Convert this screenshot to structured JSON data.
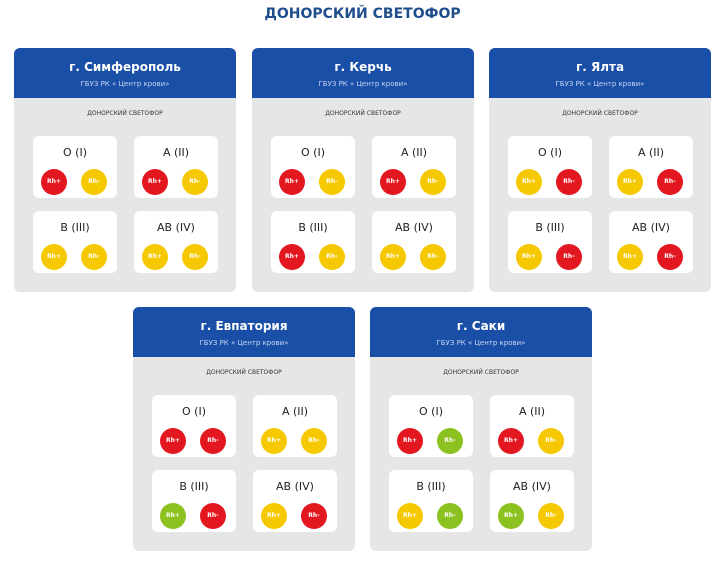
{
  "title": "ДОНОРСКИЙ СВЕТОФОР",
  "cards": [
    {
      "city": "г. Симферополь",
      "org": "ГБУЗ РК « Центр крови»",
      "label": "ДОНОРСКИЙ СВЕТОФОР",
      "groups": [
        {
          "name": "O (I)",
          "rh": [
            {
              "label": "Rh+",
              "color": "#e3171f"
            },
            {
              "label": "Rh-",
              "color": "#f5c800"
            }
          ]
        },
        {
          "name": "A (II)",
          "rh": [
            {
              "label": "Rh+",
              "color": "#e3171f"
            },
            {
              "label": "Rh-",
              "color": "#f5c800"
            }
          ]
        },
        {
          "name": "B (III)",
          "rh": [
            {
              "label": "Rh+",
              "color": "#f5c800"
            },
            {
              "label": "Rh-",
              "color": "#f5c800"
            }
          ]
        },
        {
          "name": "AB (IV)",
          "rh": [
            {
              "label": "Rh+",
              "color": "#f5c800"
            },
            {
              "label": "Rh-",
              "color": "#f5c800"
            }
          ]
        }
      ]
    },
    {
      "city": "г. Керчь",
      "org": "ГБУЗ РК « Центр крови»",
      "label": "ДОНОРСКИЙ СВЕТОФОР",
      "groups": [
        {
          "name": "O (I)",
          "rh": [
            {
              "label": "Rh+",
              "color": "#e3171f"
            },
            {
              "label": "Rh-",
              "color": "#f5c800"
            }
          ]
        },
        {
          "name": "A (II)",
          "rh": [
            {
              "label": "Rh+",
              "color": "#e3171f"
            },
            {
              "label": "Rh-",
              "color": "#f5c800"
            }
          ]
        },
        {
          "name": "B (III)",
          "rh": [
            {
              "label": "Rh+",
              "color": "#e3171f"
            },
            {
              "label": "Rh-",
              "color": "#f5c800"
            }
          ]
        },
        {
          "name": "AB (IV)",
          "rh": [
            {
              "label": "Rh+",
              "color": "#f5c800"
            },
            {
              "label": "Rh-",
              "color": "#f5c800"
            }
          ]
        }
      ]
    },
    {
      "city": "г. Ялта",
      "org": "ГБУЗ РК « Центр крови»",
      "label": "ДОНОРСКИЙ СВЕТОФОР",
      "groups": [
        {
          "name": "O (I)",
          "rh": [
            {
              "label": "Rh+",
              "color": "#f5c800"
            },
            {
              "label": "Rh-",
              "color": "#e3171f"
            }
          ]
        },
        {
          "name": "A (II)",
          "rh": [
            {
              "label": "Rh+",
              "color": "#f5c800"
            },
            {
              "label": "Rh-",
              "color": "#e3171f"
            }
          ]
        },
        {
          "name": "B (III)",
          "rh": [
            {
              "label": "Rh+",
              "color": "#f5c800"
            },
            {
              "label": "Rh-",
              "color": "#e3171f"
            }
          ]
        },
        {
          "name": "AB (IV)",
          "rh": [
            {
              "label": "Rh+",
              "color": "#f5c800"
            },
            {
              "label": "Rh-",
              "color": "#e3171f"
            }
          ]
        }
      ]
    },
    {
      "city": "г. Евпатория",
      "org": "ГБУЗ РК « Центр крови»",
      "label": "ДОНОРСКИЙ СВЕТОФОР",
      "groups": [
        {
          "name": "O (I)",
          "rh": [
            {
              "label": "Rh+",
              "color": "#e3171f"
            },
            {
              "label": "Rh-",
              "color": "#e3171f"
            }
          ]
        },
        {
          "name": "A (II)",
          "rh": [
            {
              "label": "Rh+",
              "color": "#f5c800"
            },
            {
              "label": "Rh-",
              "color": "#f5c800"
            }
          ]
        },
        {
          "name": "B (III)",
          "rh": [
            {
              "label": "Rh+",
              "color": "#8cc21f"
            },
            {
              "label": "Rh-",
              "color": "#e3171f"
            }
          ]
        },
        {
          "name": "AB (IV)",
          "rh": [
            {
              "label": "Rh+",
              "color": "#f5c800"
            },
            {
              "label": "Rh-",
              "color": "#e3171f"
            }
          ]
        }
      ]
    },
    {
      "city": "г. Саки",
      "org": "ГБУЗ РК « Центр крови»",
      "label": "ДОНОРСКИЙ СВЕТОФОР",
      "groups": [
        {
          "name": "O (I)",
          "rh": [
            {
              "label": "Rh+",
              "color": "#e3171f"
            },
            {
              "label": "Rh-",
              "color": "#8cc21f"
            }
          ]
        },
        {
          "name": "A (II)",
          "rh": [
            {
              "label": "Rh+",
              "color": "#e3171f"
            },
            {
              "label": "Rh-",
              "color": "#f5c800"
            }
          ]
        },
        {
          "name": "B (III)",
          "rh": [
            {
              "label": "Rh+",
              "color": "#f5c800"
            },
            {
              "label": "Rh-",
              "color": "#8cc21f"
            }
          ]
        },
        {
          "name": "AB (IV)",
          "rh": [
            {
              "label": "Rh+",
              "color": "#8cc21f"
            },
            {
              "label": "Rh-",
              "color": "#f5c800"
            }
          ]
        }
      ]
    }
  ]
}
